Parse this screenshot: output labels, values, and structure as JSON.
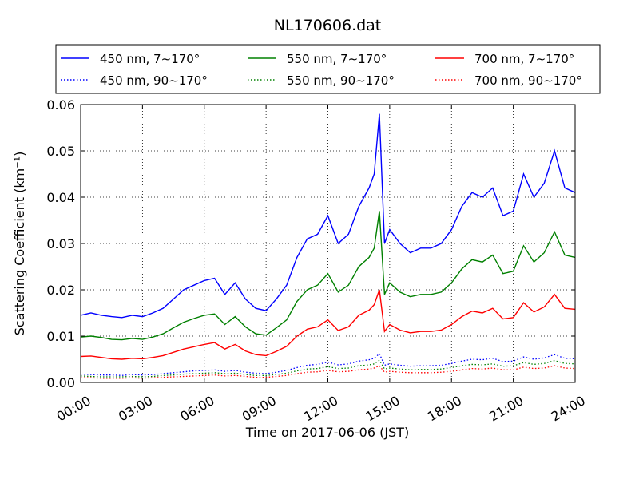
{
  "chart_data": {
    "type": "line",
    "title": "NL170606.dat",
    "xlabel": "Time on 2017-06-06 (JST)",
    "ylabel": "Scattering Coefficient (km⁻¹)",
    "x_unit": "hours",
    "xlim": [
      0,
      24
    ],
    "ylim": [
      0,
      0.06
    ],
    "xticks": [
      0,
      3,
      6,
      9,
      12,
      15,
      18,
      21,
      24
    ],
    "xtick_labels": [
      "00:00",
      "03:00",
      "06:00",
      "09:00",
      "12:00",
      "15:00",
      "18:00",
      "21:00",
      "24:00"
    ],
    "yticks": [
      0,
      0.01,
      0.02,
      0.03,
      0.04,
      0.05,
      0.06
    ],
    "ytick_labels": [
      "0.00",
      "0.01",
      "0.02",
      "0.03",
      "0.04",
      "0.05",
      "0.06"
    ],
    "grid": true,
    "legend_position": "top",
    "x": [
      0,
      0.5,
      1,
      1.5,
      2,
      2.5,
      3,
      3.5,
      4,
      4.5,
      5,
      5.5,
      6,
      6.5,
      7,
      7.5,
      8,
      8.5,
      9,
      9.5,
      10,
      10.5,
      11,
      11.5,
      12,
      12.5,
      13,
      13.5,
      14,
      14.25,
      14.5,
      14.75,
      15,
      15.5,
      16,
      16.5,
      17,
      17.5,
      18,
      18.5,
      19,
      19.5,
      20,
      20.5,
      21,
      21.5,
      22,
      22.5,
      23,
      23.5,
      24
    ],
    "series": [
      {
        "name": "450 nm, 7∼170°",
        "color": "#0000ff",
        "style": "solid",
        "values": [
          0.0145,
          0.015,
          0.0145,
          0.0142,
          0.014,
          0.0145,
          0.0142,
          0.015,
          0.016,
          0.018,
          0.02,
          0.021,
          0.022,
          0.0225,
          0.019,
          0.0215,
          0.018,
          0.016,
          0.0155,
          0.018,
          0.021,
          0.027,
          0.031,
          0.032,
          0.036,
          0.03,
          0.032,
          0.038,
          0.042,
          0.045,
          0.058,
          0.03,
          0.033,
          0.03,
          0.028,
          0.029,
          0.029,
          0.03,
          0.033,
          0.038,
          0.041,
          0.04,
          0.042,
          0.036,
          0.037,
          0.045,
          0.04,
          0.043,
          0.05,
          0.042,
          0.041
        ]
      },
      {
        "name": "550 nm, 7∼170°",
        "color": "#008000",
        "style": "solid",
        "values": [
          0.0098,
          0.01,
          0.0097,
          0.0093,
          0.0092,
          0.0095,
          0.0093,
          0.0098,
          0.0105,
          0.0118,
          0.013,
          0.0138,
          0.0145,
          0.0148,
          0.0125,
          0.0142,
          0.012,
          0.0105,
          0.0102,
          0.0118,
          0.0135,
          0.0175,
          0.02,
          0.021,
          0.0235,
          0.0195,
          0.021,
          0.025,
          0.027,
          0.029,
          0.037,
          0.019,
          0.0215,
          0.0195,
          0.0185,
          0.019,
          0.019,
          0.0195,
          0.0215,
          0.0245,
          0.0265,
          0.026,
          0.0275,
          0.0235,
          0.024,
          0.0295,
          0.026,
          0.028,
          0.0325,
          0.0275,
          0.027
        ]
      },
      {
        "name": "700 nm, 7∼170°",
        "color": "#ff0000",
        "style": "solid",
        "values": [
          0.0056,
          0.0057,
          0.0054,
          0.0051,
          0.005,
          0.0052,
          0.0051,
          0.0054,
          0.0058,
          0.0065,
          0.0072,
          0.0077,
          0.0082,
          0.0086,
          0.0072,
          0.0082,
          0.0068,
          0.006,
          0.0058,
          0.0067,
          0.0078,
          0.01,
          0.0115,
          0.012,
          0.0135,
          0.0112,
          0.012,
          0.0145,
          0.0156,
          0.0168,
          0.02,
          0.011,
          0.0125,
          0.0113,
          0.0107,
          0.011,
          0.011,
          0.0113,
          0.0125,
          0.0142,
          0.0154,
          0.015,
          0.016,
          0.0137,
          0.014,
          0.0172,
          0.0152,
          0.0163,
          0.019,
          0.016,
          0.0158
        ]
      },
      {
        "name": "450 nm, 90∼170°",
        "color": "#0000ff",
        "style": "dotted",
        "values": [
          0.0018,
          0.0017,
          0.0016,
          0.0016,
          0.0015,
          0.0017,
          0.0016,
          0.0017,
          0.0019,
          0.0021,
          0.0023,
          0.0025,
          0.0026,
          0.0027,
          0.0024,
          0.0026,
          0.0022,
          0.002,
          0.0019,
          0.0022,
          0.0026,
          0.0032,
          0.0037,
          0.0039,
          0.0044,
          0.0038,
          0.004,
          0.0046,
          0.0049,
          0.0052,
          0.0062,
          0.0037,
          0.004,
          0.0037,
          0.0035,
          0.0036,
          0.0036,
          0.0037,
          0.0041,
          0.0046,
          0.005,
          0.0049,
          0.0052,
          0.0045,
          0.0046,
          0.0055,
          0.005,
          0.0053,
          0.006,
          0.0052,
          0.0051
        ]
      },
      {
        "name": "550 nm, 90∼170°",
        "color": "#008000",
        "style": "dotted",
        "values": [
          0.0014,
          0.0013,
          0.0012,
          0.0012,
          0.0012,
          0.0013,
          0.0012,
          0.0013,
          0.0015,
          0.0016,
          0.0018,
          0.0019,
          0.002,
          0.0021,
          0.0019,
          0.002,
          0.0017,
          0.0015,
          0.0015,
          0.0017,
          0.002,
          0.0025,
          0.0029,
          0.003,
          0.0034,
          0.003,
          0.0031,
          0.0036,
          0.0038,
          0.004,
          0.0048,
          0.0029,
          0.0031,
          0.0029,
          0.0027,
          0.0028,
          0.0028,
          0.0029,
          0.0032,
          0.0036,
          0.0039,
          0.0038,
          0.004,
          0.0035,
          0.0036,
          0.0043,
          0.0039,
          0.0041,
          0.0047,
          0.0041,
          0.004
        ]
      },
      {
        "name": "700 nm, 90∼170°",
        "color": "#ff0000",
        "style": "dotted",
        "values": [
          0.001,
          0.001,
          0.0009,
          0.0009,
          0.0009,
          0.001,
          0.0009,
          0.001,
          0.0011,
          0.0012,
          0.0013,
          0.0014,
          0.0015,
          0.0016,
          0.0014,
          0.0015,
          0.0013,
          0.0011,
          0.0011,
          0.0013,
          0.0015,
          0.0019,
          0.0022,
          0.0023,
          0.0026,
          0.0023,
          0.0024,
          0.0027,
          0.0029,
          0.0031,
          0.0036,
          0.0022,
          0.0024,
          0.0022,
          0.0021,
          0.0021,
          0.0021,
          0.0022,
          0.0024,
          0.0027,
          0.003,
          0.0029,
          0.0031,
          0.0027,
          0.0027,
          0.0033,
          0.003,
          0.0031,
          0.0036,
          0.0031,
          0.003
        ]
      }
    ]
  }
}
